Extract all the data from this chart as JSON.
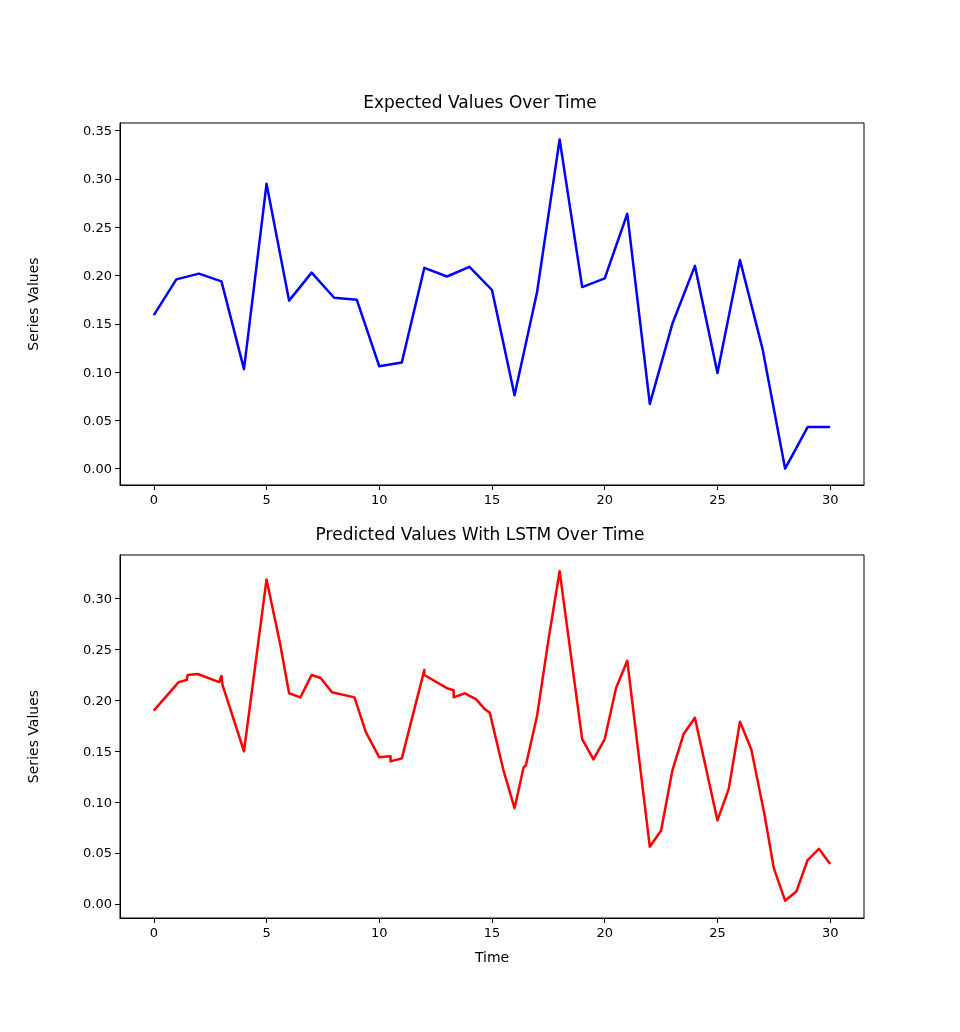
{
  "chart_data": [
    {
      "type": "line",
      "title": "Expected Values Over Time",
      "ylabel": "Series Values",
      "x": [
        0,
        1,
        2,
        3,
        4,
        5,
        6,
        7,
        8,
        9,
        10,
        11,
        12,
        13,
        14,
        15,
        16,
        17,
        18,
        19,
        20,
        21,
        22,
        23,
        24,
        25,
        26,
        27,
        28,
        29,
        30
      ],
      "series": [
        {
          "color": "#0000ff",
          "values": [
            0.159,
            0.196,
            0.202,
            0.194,
            0.103,
            0.295,
            0.174,
            0.203,
            0.177,
            0.175,
            0.106,
            0.11,
            0.208,
            0.199,
            0.209,
            0.185,
            0.076,
            0.183,
            0.341,
            0.188,
            0.197,
            0.264,
            0.067,
            0.15,
            0.21,
            0.099,
            0.216,
            0.124,
            0.0,
            0.043,
            0.043
          ]
        }
      ],
      "xlim": [
        -1.5,
        31.5
      ],
      "xticks": [
        0,
        5,
        10,
        15,
        20,
        25,
        30
      ],
      "ylim": [
        -0.017,
        0.358
      ],
      "yticks": [
        {
          "value": 0,
          "label": "0.00"
        },
        {
          "value": 0.05,
          "label": "0.05"
        },
        {
          "value": 0.1,
          "label": "0.10"
        },
        {
          "value": 0.15,
          "label": "0.15"
        },
        {
          "value": 0.2,
          "label": "0.20"
        },
        {
          "value": 0.25,
          "label": "0.25"
        },
        {
          "value": 0.3,
          "label": "0.30"
        },
        {
          "value": 0.35,
          "label": "0.35"
        }
      ]
    },
    {
      "type": "line",
      "title": "Predicted Values With LSTM Over Time",
      "xlabel": "Time",
      "ylabel": "Series Values",
      "x": [
        0,
        1.1,
        1.46,
        1.5,
        1.95,
        2.9,
        3.0,
        3.05,
        4.0,
        5.0,
        5.6,
        6.0,
        6.5,
        7.0,
        7.4,
        7.9,
        8.9,
        9.4,
        10.0,
        10.5,
        10.5,
        11.0,
        12.0,
        12.0,
        13.0,
        13.3,
        13.3,
        13.8,
        14.3,
        14.7,
        14.9,
        15.5,
        16.0,
        16.4,
        16.5,
        17.0,
        17.5,
        18.0,
        19.0,
        19.5,
        20.0,
        20.5,
        21.0,
        22.0,
        22.5,
        23.0,
        23.5,
        24.0,
        25.0,
        25.5,
        26.0,
        26.5,
        27.1,
        27.5,
        28.0,
        28.5,
        29.0,
        29.5,
        30.0
      ],
      "series": [
        {
          "color": "#ff0000",
          "values": [
            0.19,
            0.218,
            0.22,
            0.225,
            0.226,
            0.218,
            0.224,
            0.215,
            0.15,
            0.319,
            0.256,
            0.207,
            0.203,
            0.225,
            0.222,
            0.208,
            0.203,
            0.169,
            0.144,
            0.145,
            0.14,
            0.143,
            0.23,
            0.225,
            0.212,
            0.21,
            0.203,
            0.207,
            0.201,
            0.191,
            0.188,
            0.132,
            0.094,
            0.134,
            0.136,
            0.185,
            0.259,
            0.327,
            0.162,
            0.142,
            0.162,
            0.212,
            0.239,
            0.056,
            0.072,
            0.131,
            0.167,
            0.183,
            0.082,
            0.113,
            0.179,
            0.152,
            0.086,
            0.035,
            0.003,
            0.012,
            0.043,
            0.054,
            0.039
          ]
        }
      ],
      "xlim": [
        -1.5,
        31.5
      ],
      "xticks": [
        0,
        5,
        10,
        15,
        20,
        25,
        30
      ],
      "ylim": [
        -0.014,
        0.343
      ],
      "yticks": [
        {
          "value": 0,
          "label": "0.00"
        },
        {
          "value": 0.05,
          "label": "0.05"
        },
        {
          "value": 0.1,
          "label": "0.10"
        },
        {
          "value": 0.15,
          "label": "0.15"
        },
        {
          "value": 0.2,
          "label": "0.20"
        },
        {
          "value": 0.25,
          "label": "0.25"
        },
        {
          "value": 0.3,
          "label": "0.30"
        }
      ]
    }
  ]
}
